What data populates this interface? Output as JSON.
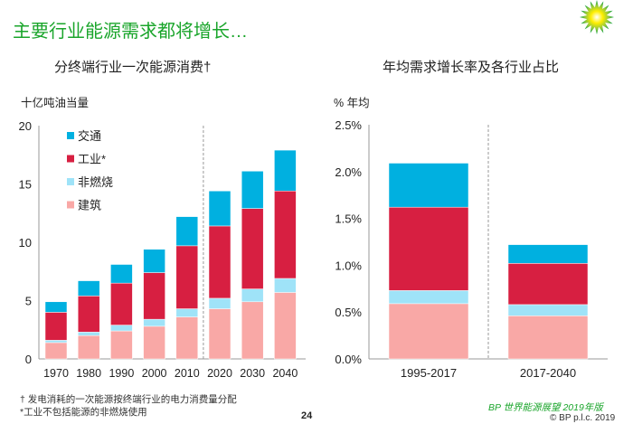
{
  "page": {
    "title": "主要行业能源需求都将增长…",
    "footnote_1": "† 发电消耗的一次能源按终端行业的电力消费量分配",
    "footnote_2": "*工业不包括能源的非燃烧使用",
    "page_number": "24",
    "brand_line": "BP 世界能源展望 2019年版",
    "copyright": "© BP p.l.c. 2019",
    "logo": "bp-helios-logo"
  },
  "colors": {
    "交通": "#00b0e0",
    "工业*": "#d71f41",
    "非燃烧": "#9fe3f8",
    "建筑": "#f9a8a6",
    "title": "#1aa52b"
  },
  "chart_data": [
    {
      "type": "bar",
      "stacked": true,
      "title": "分终端行业一次能源消费†",
      "ylabel": "十亿吨油当量",
      "ylim": [
        0,
        20
      ],
      "yticks": [
        "0",
        "5",
        "10",
        "15",
        "20"
      ],
      "categories": [
        "1970",
        "1980",
        "1990",
        "2000",
        "2010",
        "2020",
        "2030",
        "2040"
      ],
      "legend_position": "top-left",
      "divider_after": "2010",
      "series": [
        {
          "name": "建筑",
          "values": [
            1.4,
            2.0,
            2.4,
            2.8,
            3.6,
            4.3,
            4.9,
            5.7
          ]
        },
        {
          "name": "非燃烧",
          "values": [
            0.2,
            0.3,
            0.5,
            0.6,
            0.7,
            0.9,
            1.1,
            1.2
          ]
        },
        {
          "name": "工业*",
          "values": [
            2.4,
            3.1,
            3.6,
            4.0,
            5.4,
            6.2,
            6.9,
            7.5
          ]
        },
        {
          "name": "交通",
          "values": [
            0.9,
            1.3,
            1.6,
            2.0,
            2.5,
            3.0,
            3.2,
            3.5
          ]
        }
      ],
      "legend_order": [
        "交通",
        "工业*",
        "非燃烧",
        "建筑"
      ]
    },
    {
      "type": "bar",
      "stacked": true,
      "title": "年均需求增长率及各行业占比",
      "ylabel": "% 年均",
      "ylim": [
        0,
        2.5
      ],
      "yticks": [
        "0.0%",
        "0.5%",
        "1.0%",
        "1.5%",
        "2.0%",
        "2.5%"
      ],
      "categories": [
        "1995-2017",
        "2017-2040"
      ],
      "divider_after": "1995-2017",
      "series": [
        {
          "name": "建筑",
          "values": [
            0.59,
            0.46
          ]
        },
        {
          "name": "非燃烧",
          "values": [
            0.14,
            0.12
          ]
        },
        {
          "name": "工业*",
          "values": [
            0.89,
            0.44
          ]
        },
        {
          "name": "交通",
          "values": [
            0.47,
            0.2
          ]
        }
      ]
    }
  ]
}
